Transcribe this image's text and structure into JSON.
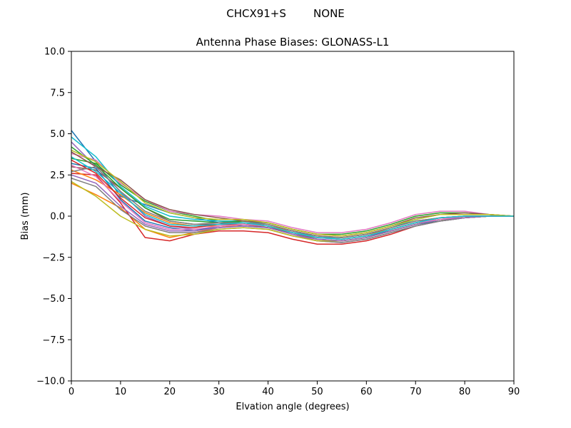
{
  "figure": {
    "suptitle": "CHCX91+S        NONE"
  },
  "chart_data": {
    "type": "line",
    "title": "Antenna Phase Biases: GLONASS-L1",
    "xlabel": "Elvation angle (degrees)",
    "ylabel": "Bias (mm)",
    "xlim": [
      0,
      90
    ],
    "ylim": [
      -10,
      10
    ],
    "x_ticks": [
      0,
      10,
      20,
      30,
      40,
      50,
      60,
      70,
      80,
      90
    ],
    "y_ticks": [
      10.0,
      7.5,
      5.0,
      2.5,
      0.0,
      -2.5,
      -5.0,
      -7.5,
      -10.0
    ],
    "x_tick_labels": [
      "0",
      "10",
      "20",
      "30",
      "40",
      "50",
      "60",
      "70",
      "80",
      "90"
    ],
    "y_tick_labels": [
      "10.0",
      "7.5",
      "5.0",
      "2.5",
      "0.0",
      "−2.5",
      "−5.0",
      "−7.5",
      "−10.0"
    ],
    "grid": false,
    "legend": "none",
    "colors": [
      "#1f77b4",
      "#ff7f0e",
      "#2ca02c",
      "#d62728",
      "#9467bd",
      "#8c564b",
      "#e377c2",
      "#7f7f7f",
      "#bcbd22",
      "#17becf"
    ],
    "x": [
      0,
      5,
      10,
      15,
      20,
      25,
      30,
      35,
      40,
      45,
      50,
      55,
      60,
      65,
      70,
      75,
      80,
      85,
      90
    ],
    "series": [
      {
        "values": [
          5.2,
          3.3,
          1.2,
          0.7,
          0.2,
          -0.1,
          -0.4,
          -0.6,
          -0.7,
          -1.0,
          -1.3,
          -1.4,
          -1.2,
          -0.9,
          -0.5,
          -0.3,
          -0.1,
          0.0,
          0.0
        ]
      },
      {
        "values": [
          2.0,
          1.3,
          0.5,
          -0.8,
          -1.3,
          -1.0,
          -0.7,
          -0.5,
          -0.6,
          -0.9,
          -1.2,
          -1.3,
          -1.1,
          -0.8,
          -0.4,
          -0.2,
          -0.1,
          0.0,
          0.0
        ]
      },
      {
        "values": [
          3.5,
          3.2,
          1.9,
          0.9,
          0.3,
          0.0,
          -0.3,
          -0.4,
          -0.6,
          -1.0,
          -1.4,
          -1.5,
          -1.3,
          -0.9,
          -0.5,
          -0.2,
          -0.1,
          0.0,
          0.0
        ]
      },
      {
        "values": [
          2.6,
          2.5,
          0.8,
          -1.3,
          -1.5,
          -1.1,
          -0.9,
          -0.9,
          -1.0,
          -1.4,
          -1.7,
          -1.7,
          -1.5,
          -1.1,
          -0.6,
          -0.3,
          -0.1,
          0.0,
          0.0
        ]
      },
      {
        "values": [
          4.5,
          3.0,
          1.5,
          0.0,
          -0.6,
          -0.8,
          -0.7,
          -0.6,
          -0.7,
          -1.1,
          -1.5,
          -1.6,
          -1.4,
          -1.0,
          -0.6,
          -0.3,
          -0.1,
          0.0,
          0.0
        ]
      },
      {
        "values": [
          3.0,
          2.8,
          1.7,
          0.5,
          -0.3,
          -0.5,
          -0.5,
          -0.5,
          -0.7,
          -1.0,
          -1.4,
          -1.5,
          -1.3,
          -0.9,
          -0.5,
          -0.2,
          -0.1,
          0.0,
          0.0
        ]
      },
      {
        "values": [
          3.8,
          3.4,
          2.0,
          1.0,
          0.3,
          0.1,
          0.0,
          -0.2,
          -0.3,
          -0.7,
          -1.0,
          -1.0,
          -0.8,
          -0.4,
          0.1,
          0.3,
          0.3,
          0.1,
          0.0
        ]
      },
      {
        "values": [
          2.3,
          1.8,
          0.4,
          -0.6,
          -1.0,
          -1.0,
          -0.8,
          -0.7,
          -0.8,
          -1.2,
          -1.5,
          -1.6,
          -1.4,
          -1.0,
          -0.6,
          -0.3,
          -0.1,
          0.0,
          0.0
        ]
      },
      {
        "values": [
          2.1,
          1.2,
          0.0,
          -0.8,
          -1.2,
          -1.1,
          -0.8,
          -0.7,
          -0.8,
          -1.2,
          -1.5,
          -1.5,
          -1.3,
          -0.9,
          -0.5,
          -0.2,
          -0.1,
          0.0,
          0.0
        ]
      },
      {
        "values": [
          4.8,
          3.6,
          1.8,
          0.6,
          0.0,
          -0.2,
          -0.3,
          -0.3,
          -0.5,
          -0.9,
          -1.3,
          -1.3,
          -1.1,
          -0.7,
          -0.2,
          0.1,
          0.1,
          0.1,
          0.0
        ]
      },
      {
        "values": [
          3.2,
          2.9,
          1.0,
          -0.3,
          -0.7,
          -0.9,
          -0.6,
          -0.5,
          -0.6,
          -1.0,
          -1.3,
          -1.4,
          -1.2,
          -0.8,
          -0.4,
          -0.1,
          0.0,
          0.0,
          0.0
        ]
      },
      {
        "values": [
          2.8,
          2.2,
          1.3,
          0.2,
          -0.4,
          -0.6,
          -0.6,
          -0.5,
          -0.6,
          -1.0,
          -1.3,
          -1.4,
          -1.2,
          -0.8,
          -0.4,
          -0.2,
          0.0,
          0.0,
          0.0
        ]
      },
      {
        "values": [
          4.2,
          3.1,
          1.7,
          0.5,
          -0.2,
          -0.3,
          -0.4,
          -0.3,
          -0.4,
          -0.8,
          -1.1,
          -1.1,
          -0.9,
          -0.5,
          0.0,
          0.2,
          0.2,
          0.1,
          0.0
        ]
      },
      {
        "values": [
          3.4,
          2.6,
          1.1,
          -0.1,
          -0.6,
          -0.7,
          -0.5,
          -0.4,
          -0.5,
          -0.9,
          -1.2,
          -1.3,
          -1.1,
          -0.7,
          -0.3,
          -0.1,
          0.0,
          0.0,
          0.0
        ]
      },
      {
        "values": [
          2.5,
          2.0,
          0.6,
          -0.5,
          -0.9,
          -0.9,
          -0.7,
          -0.6,
          -0.7,
          -1.1,
          -1.4,
          -1.5,
          -1.3,
          -0.9,
          -0.5,
          -0.2,
          -0.1,
          0.0,
          0.0
        ]
      },
      {
        "values": [
          3.9,
          3.0,
          2.2,
          1.0,
          0.4,
          0.1,
          -0.1,
          -0.3,
          -0.4,
          -0.8,
          -1.1,
          -1.2,
          -1.0,
          -0.6,
          -0.1,
          0.1,
          0.2,
          0.1,
          0.0
        ]
      },
      {
        "values": [
          3.1,
          2.4,
          0.9,
          -0.4,
          -0.8,
          -0.8,
          -0.6,
          -0.5,
          -0.6,
          -1.0,
          -1.3,
          -1.4,
          -1.2,
          -0.8,
          -0.4,
          -0.2,
          0.0,
          0.0,
          0.0
        ]
      },
      {
        "values": [
          2.7,
          3.0,
          1.5,
          0.3,
          -0.3,
          -0.5,
          -0.4,
          -0.4,
          -0.5,
          -0.9,
          -1.2,
          -1.3,
          -1.1,
          -0.7,
          -0.3,
          -0.1,
          0.0,
          0.0,
          0.0
        ]
      },
      {
        "values": [
          4.0,
          3.3,
          2.1,
          0.8,
          0.2,
          -0.1,
          -0.2,
          -0.2,
          -0.4,
          -0.8,
          -1.1,
          -1.2,
          -1.0,
          -0.6,
          -0.2,
          0.1,
          0.1,
          0.1,
          0.0
        ]
      },
      {
        "values": [
          3.6,
          2.7,
          1.4,
          0.1,
          -0.5,
          -0.6,
          -0.5,
          -0.4,
          -0.6,
          -1.0,
          -1.3,
          -1.4,
          -1.2,
          -0.8,
          -0.4,
          -0.1,
          0.0,
          0.0,
          0.0
        ]
      }
    ]
  }
}
